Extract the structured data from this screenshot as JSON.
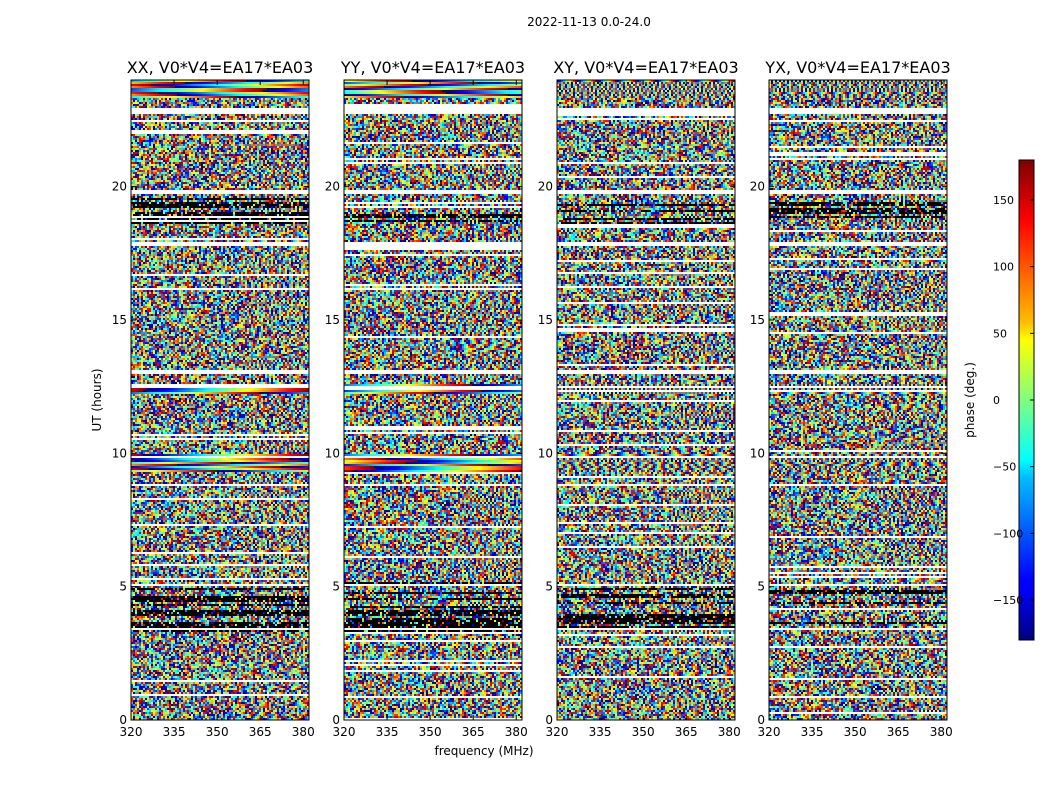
{
  "chart_data": {
    "type": "heatmap",
    "suptitle": "2022-11-13 0.0-24.0",
    "xlabel": "frequency (MHz)",
    "ylabel": "UT (hours)",
    "xlim": [
      320,
      382
    ],
    "ylim": [
      0,
      24
    ],
    "xticks": [
      320,
      335,
      350,
      365,
      380
    ],
    "yticks": [
      0,
      5,
      10,
      15,
      20
    ],
    "panels": [
      {
        "title": "XX, V0*V4=EA17*EA03"
      },
      {
        "title": "YY, V0*V4=EA17*EA03"
      },
      {
        "title": "XY, V0*V4=EA17*EA03"
      },
      {
        "title": "YX, V0*V4=EA17*EA03"
      }
    ],
    "colorbar": {
      "label": "phase (deg.)",
      "range": [
        -180,
        180
      ],
      "ticks": [
        150,
        100,
        50,
        0,
        -50,
        -100,
        -150
      ],
      "tick_labels": [
        "150",
        "100",
        "50",
        "0",
        "−50",
        "−100",
        "−150"
      ],
      "colormap": "jet"
    },
    "flagged_time_bands_hours": [
      [
        22.7,
        22.95
      ],
      [
        19.7,
        19.85
      ],
      [
        17.8,
        17.95
      ],
      [
        13.0,
        13.1
      ],
      [
        12.45,
        12.55
      ],
      [
        9.82,
        9.9
      ],
      [
        8.75,
        8.88
      ],
      [
        5.0,
        5.08
      ],
      [
        3.35,
        3.45
      ]
    ]
  }
}
